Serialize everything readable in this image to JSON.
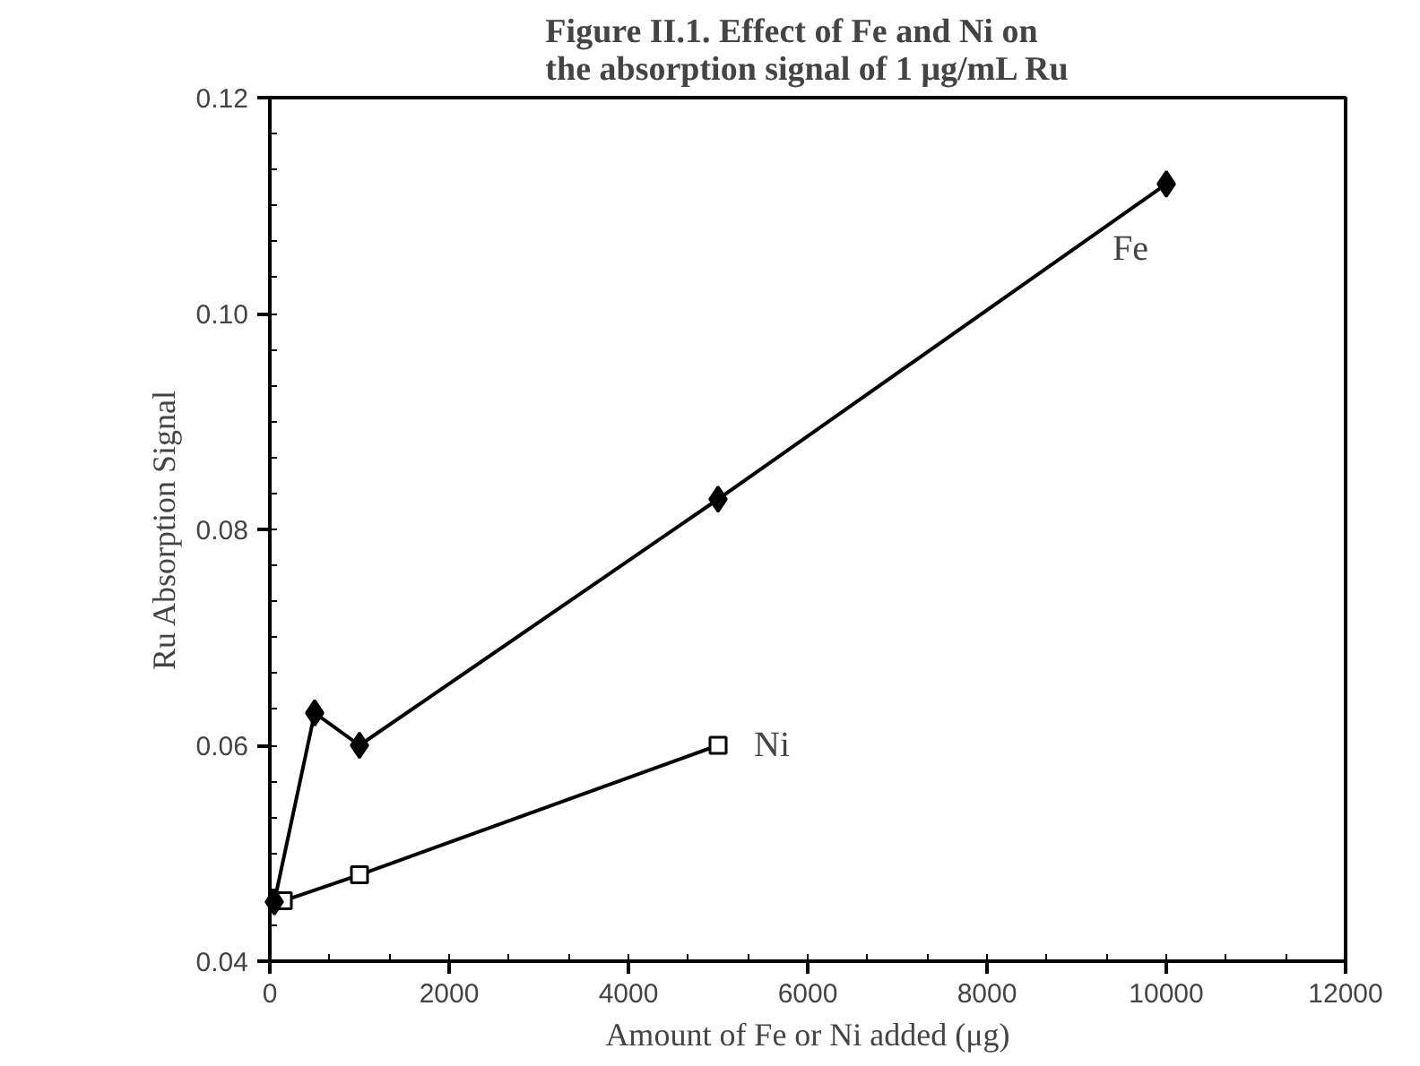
{
  "chart_data": {
    "type": "line",
    "title": "Figure II.1. Effect of Fe and Ni on\nthe absorption signal of 1 μg/mL Ru",
    "xlabel": "Amount of Fe or Ni added (μg)",
    "ylabel": "Ru Absorption Signal",
    "xlim": [
      0,
      12000
    ],
    "xticks": [
      0,
      2000,
      4000,
      6000,
      8000,
      10000,
      12000
    ],
    "ylim": [
      0.04,
      0.12
    ],
    "yticks": [
      {
        "value": 0.04,
        "label": "0.04"
      },
      {
        "value": 0.06,
        "label": "0.06"
      },
      {
        "value": 0.08,
        "label": "0.08"
      },
      {
        "value": 0.1,
        "label": "0.10"
      },
      {
        "value": 0.12,
        "label": "0.12"
      }
    ],
    "grid": false,
    "series": [
      {
        "name": "Fe",
        "color": "#000000",
        "marker": "diamond",
        "x": [
          50,
          500,
          1000,
          5000,
          10000
        ],
        "values": [
          0.0455,
          0.063,
          0.06,
          0.0828,
          0.112
        ]
      },
      {
        "name": "Ni",
        "color": "#000000",
        "marker": "square",
        "x": [
          150,
          1000,
          5000
        ],
        "values": [
          0.0456,
          0.048,
          0.06
        ]
      }
    ]
  }
}
